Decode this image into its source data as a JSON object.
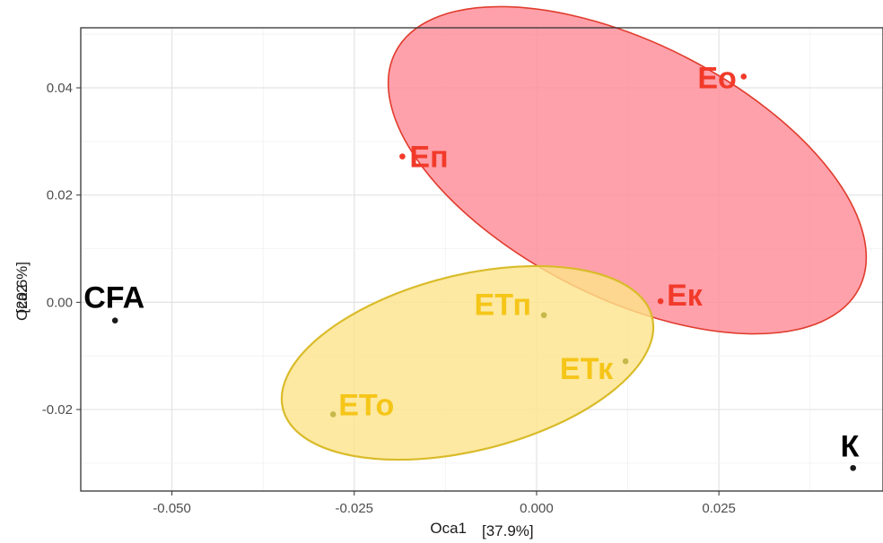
{
  "chart_data": {
    "type": "scatter",
    "title": "",
    "xlabel": "Оса1",
    "xlabel_pct": "[37.9%]",
    "ylabel": "Оса2",
    "ylabel_pct": "[20.6%]",
    "xlim": [
      -0.0625,
      0.0475
    ],
    "ylim": [
      -0.0352,
      0.0512
    ],
    "grid": true,
    "x_ticks": [
      -0.05,
      -0.025,
      0.0,
      0.025
    ],
    "x_tick_labels": [
      "-0.050",
      "-0.025",
      "0.000",
      "0.025"
    ],
    "y_ticks": [
      -0.02,
      0.0,
      0.02,
      0.04
    ],
    "y_tick_labels": [
      "-0.02",
      "0.00",
      "0.02",
      "0.04"
    ],
    "points": [
      {
        "label": "Ео",
        "x": 0.0284,
        "y": 0.0421,
        "group": "E"
      },
      {
        "label": "Еп",
        "x": -0.0184,
        "y": 0.0272,
        "group": "E"
      },
      {
        "label": "Ек",
        "x": 0.017,
        "y": 0.0002,
        "group": "E"
      },
      {
        "label": "ЕТп",
        "x": 0.001,
        "y": -0.0024,
        "group": "ET"
      },
      {
        "label": "ЕТк",
        "x": 0.0122,
        "y": -0.011,
        "group": "ET"
      },
      {
        "label": "ЕТо",
        "x": -0.0279,
        "y": -0.0209,
        "group": "ET"
      },
      {
        "label": "CFA",
        "x": -0.0578,
        "y": -0.0034,
        "group": "other"
      },
      {
        "label": "К",
        "x": 0.0434,
        "y": -0.0309,
        "group": "other"
      }
    ],
    "groups": {
      "E": {
        "point_color": "#f23a2a",
        "label_color": "#f23a2a",
        "fill": "#ff8a96",
        "stroke": "#e03c2c"
      },
      "ET": {
        "point_color": "#c6b84a",
        "label_color": "#f5c518",
        "fill": "#fde38a",
        "stroke": "#d9bb2a"
      },
      "other": {
        "point_color": "#1a1a1a",
        "label_color": "#000000"
      }
    }
  }
}
